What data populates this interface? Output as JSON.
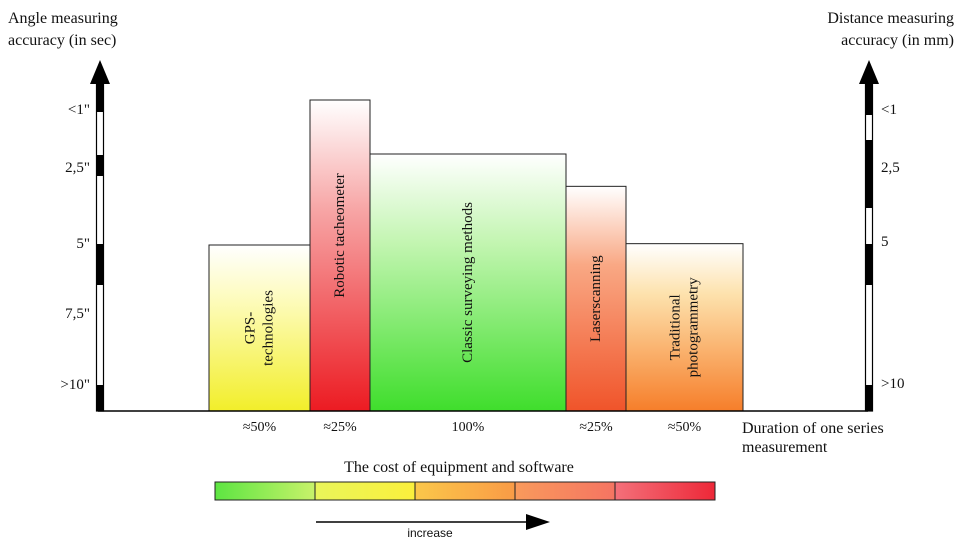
{
  "chart_data": {
    "type": "bar",
    "left_axis": {
      "label_lines": [
        "Angle measuring",
        "accuracy (in sec)"
      ],
      "tick_labels": [
        "<1\"",
        "2,5\"",
        "5\"",
        "7,5\"",
        ">10\""
      ]
    },
    "right_axis": {
      "label_lines": [
        "Distance measuring",
        "accuracy (in mm)"
      ],
      "tick_labels": [
        "<1",
        "2,5",
        "5",
        ">10"
      ]
    },
    "x_axis": {
      "label_lines": [
        "Duration of one series",
        "measurement"
      ]
    },
    "categories": [
      {
        "label_lines": [
          "GPS-",
          "technologies"
        ],
        "duration": "≈50%",
        "accuracy_level": 5,
        "width_share": 0.5
      },
      {
        "label_lines": [
          "Robotic tacheometer"
        ],
        "duration": "≈25%",
        "accuracy_level": 0.8,
        "width_share": 0.25
      },
      {
        "label_lines": [
          "Classic surveying methods"
        ],
        "duration": "100%",
        "accuracy_level": 1.8,
        "width_share": 1.0
      },
      {
        "label_lines": [
          "Laserscanning"
        ],
        "duration": "≈25%",
        "accuracy_level": 2.8,
        "width_share": 0.25
      },
      {
        "label_lines": [
          "Traditional",
          "photogrammetry"
        ],
        "duration": "≈50%",
        "accuracy_level": 4.95,
        "width_share": 0.5
      }
    ],
    "cost_scale": {
      "title": "The cost of equipment and software",
      "arrow_label": "increase",
      "segments": 5
    }
  },
  "colors": {
    "green": "#55e43a",
    "yellow": "#fbf43c",
    "orange": "#f9a23a",
    "red": "#ef1c22",
    "axis": "#000000",
    "white": "#ffffff"
  }
}
